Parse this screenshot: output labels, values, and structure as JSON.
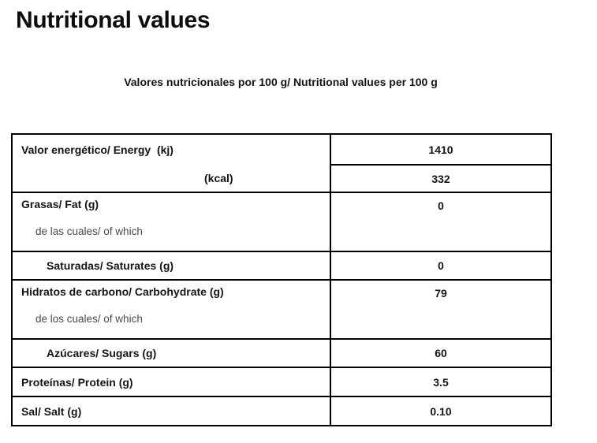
{
  "header": {
    "title": "Nutritional values",
    "caption": "Valores nutricionales por 100 g/ Nutritional values per 100 g"
  },
  "table": {
    "energy": {
      "label_kj": "Valor energético/ Energy  (kj)",
      "label_kcal": "(kcal)",
      "value_kj": "1410",
      "value_kcal": "332"
    },
    "fat": {
      "label": "Grasas/ Fat (g)",
      "of_which": "de las cuales/ of which",
      "value": "0"
    },
    "saturates": {
      "label": "Saturadas/ Saturates (g)",
      "value": "0"
    },
    "carbohydrate": {
      "label": "Hidratos de carbono/ Carbohydrate (g)",
      "of_which": "de los cuales/ of which",
      "value": "79"
    },
    "sugars": {
      "label": "Azúcares/ Sugars (g)",
      "value": "60"
    },
    "protein": {
      "label": "Proteínas/ Protein (g)",
      "value": "3.5"
    },
    "salt": {
      "label": "Sal/ Salt (g)",
      "value": "0.10"
    }
  }
}
